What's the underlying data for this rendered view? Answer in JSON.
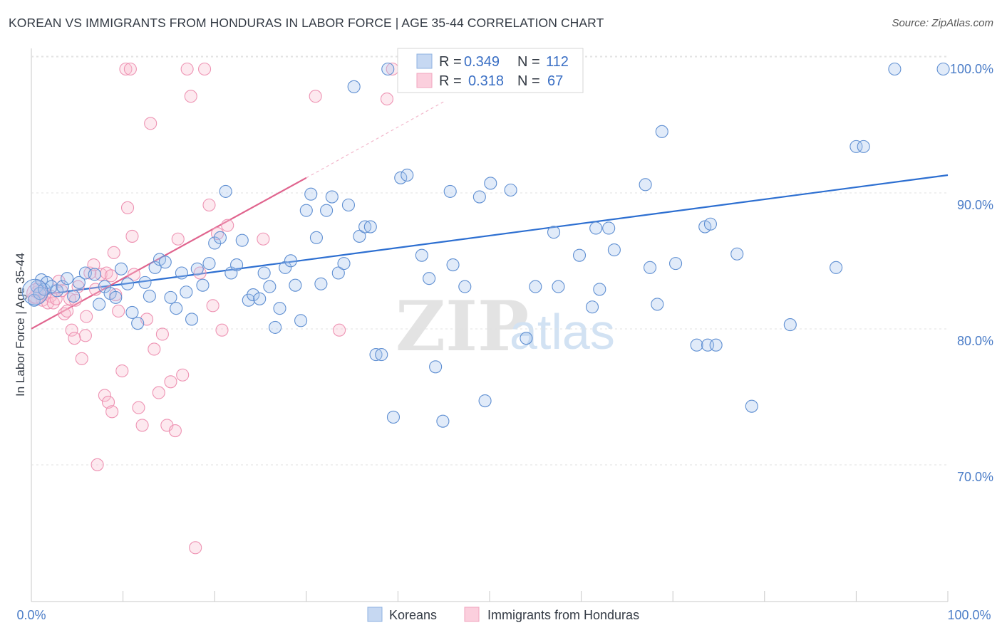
{
  "title": "KOREAN VS IMMIGRANTS FROM HONDURAS IN LABOR FORCE | AGE 35-44 CORRELATION CHART",
  "source": "Source: ZipAtlas.com",
  "watermark": {
    "zip": "ZIP",
    "atlas": "atlas"
  },
  "colors": {
    "blue": "#6f9fdc",
    "blue_line": "#2d6fd1",
    "pink": "#f29cb8",
    "pink_line": "#e0648e"
  },
  "legend": {
    "r_label": "R =",
    "n_label": "N =",
    "blue": {
      "r": "0.349",
      "n": "112"
    },
    "pink": {
      "r": "0.318",
      "n": "67"
    }
  },
  "chart_data": {
    "type": "scatter",
    "title": "KOREAN VS IMMIGRANTS FROM HONDURAS IN LABOR FORCE | AGE 35-44 CORRELATION CHART",
    "xlabel": "",
    "ylabel": "In Labor Force | Age 35-44",
    "xlim": [
      0,
      100
    ],
    "ylim": [
      60,
      102
    ],
    "x_tick_labels": [
      "0.0%",
      "100.0%"
    ],
    "y_ticks": [
      {
        "value": 70,
        "label": "70.0%"
      },
      {
        "value": 80,
        "label": "80.0%"
      },
      {
        "value": 90,
        "label": "90.0%"
      },
      {
        "value": 100,
        "label": "100.0%"
      }
    ],
    "series": [
      {
        "name": "Koreans",
        "color": "#6f9fdc",
        "trend": {
          "x": [
            0,
            100
          ],
          "y": [
            83.3,
            92.2
          ]
        },
        "points": [
          [
            0.3,
            83.0
          ],
          [
            0.6,
            84.0
          ],
          [
            0.9,
            83.5
          ],
          [
            1.1,
            84.5
          ],
          [
            1.4,
            83.8
          ],
          [
            1.7,
            84.3
          ],
          [
            2.2,
            84.0
          ],
          [
            2.8,
            83.7
          ],
          [
            3.4,
            84.0
          ],
          [
            3.9,
            84.6
          ],
          [
            4.6,
            83.3
          ],
          [
            5.2,
            84.3
          ],
          [
            5.9,
            85.0
          ],
          [
            6.9,
            84.9
          ],
          [
            7.4,
            82.7
          ],
          [
            8.0,
            84.0
          ],
          [
            8.6,
            83.5
          ],
          [
            9.2,
            83.2
          ],
          [
            9.8,
            85.3
          ],
          [
            10.5,
            84.2
          ],
          [
            11.0,
            82.1
          ],
          [
            11.6,
            81.3
          ],
          [
            12.4,
            84.3
          ],
          [
            12.9,
            83.3
          ],
          [
            13.5,
            85.4
          ],
          [
            14.0,
            86.0
          ],
          [
            14.6,
            85.8
          ],
          [
            15.2,
            83.2
          ],
          [
            15.8,
            82.4
          ],
          [
            16.4,
            85.0
          ],
          [
            16.9,
            83.6
          ],
          [
            17.5,
            81.6
          ],
          [
            18.1,
            85.3
          ],
          [
            18.7,
            84.1
          ],
          [
            19.4,
            85.7
          ],
          [
            20.0,
            87.2
          ],
          [
            20.6,
            87.6
          ],
          [
            21.2,
            91.0
          ],
          [
            21.8,
            85.0
          ],
          [
            22.4,
            85.6
          ],
          [
            23.0,
            87.4
          ],
          [
            23.7,
            83.0
          ],
          [
            24.2,
            83.4
          ],
          [
            24.9,
            83.1
          ],
          [
            25.4,
            85.0
          ],
          [
            26.0,
            84.0
          ],
          [
            26.6,
            81.0
          ],
          [
            27.1,
            82.4
          ],
          [
            27.7,
            85.4
          ],
          [
            28.3,
            85.9
          ],
          [
            28.8,
            84.1
          ],
          [
            29.4,
            81.5
          ],
          [
            30.0,
            89.6
          ],
          [
            30.5,
            90.8
          ],
          [
            31.1,
            87.6
          ],
          [
            31.6,
            84.2
          ],
          [
            32.2,
            89.6
          ],
          [
            32.8,
            90.6
          ],
          [
            33.5,
            85.0
          ],
          [
            34.1,
            85.7
          ],
          [
            34.6,
            90.0
          ],
          [
            35.2,
            98.7
          ],
          [
            35.8,
            87.7
          ],
          [
            36.4,
            88.4
          ],
          [
            37.0,
            88.4
          ],
          [
            37.6,
            79.0
          ],
          [
            38.2,
            79.0
          ],
          [
            38.9,
            100.0
          ],
          [
            39.5,
            74.4
          ],
          [
            40.3,
            92.0
          ],
          [
            41.0,
            92.2
          ],
          [
            42.6,
            86.3
          ],
          [
            43.4,
            84.6
          ],
          [
            44.1,
            78.1
          ],
          [
            44.9,
            74.1
          ],
          [
            45.7,
            91.0
          ],
          [
            46.0,
            85.6
          ],
          [
            47.3,
            84.0
          ],
          [
            48.9,
            90.6
          ],
          [
            49.5,
            75.6
          ],
          [
            50.1,
            91.6
          ],
          [
            52.3,
            91.1
          ],
          [
            54.0,
            80.2
          ],
          [
            55.0,
            84.0
          ],
          [
            57.0,
            88.0
          ],
          [
            57.5,
            84.0
          ],
          [
            59.8,
            86.3
          ],
          [
            61.2,
            82.5
          ],
          [
            61.6,
            88.3
          ],
          [
            62.0,
            83.8
          ],
          [
            63.0,
            88.3
          ],
          [
            63.6,
            86.7
          ],
          [
            67.0,
            91.5
          ],
          [
            67.5,
            85.4
          ],
          [
            68.3,
            82.7
          ],
          [
            68.8,
            95.4
          ],
          [
            70.3,
            85.7
          ],
          [
            72.6,
            79.7
          ],
          [
            73.5,
            88.4
          ],
          [
            74.1,
            88.6
          ],
          [
            73.8,
            79.7
          ],
          [
            74.7,
            79.7
          ],
          [
            77.0,
            86.4
          ],
          [
            78.6,
            75.2
          ],
          [
            82.8,
            81.2
          ],
          [
            87.8,
            85.4
          ],
          [
            90.0,
            94.3
          ],
          [
            90.8,
            94.3
          ],
          [
            94.2,
            100.0
          ],
          [
            99.5,
            100.0
          ]
        ]
      },
      {
        "name": "Immigrants from Honduras",
        "color": "#f29cb8",
        "trend": {
          "x": [
            0,
            30
          ],
          "y": [
            80.9,
            92.0
          ]
        },
        "trend_extension": {
          "x": [
            30,
            45
          ],
          "y": [
            92.0,
            97.6
          ]
        },
        "points": [
          [
            0.3,
            83.2
          ],
          [
            0.6,
            83.6
          ],
          [
            0.9,
            84.0
          ],
          [
            1.2,
            83.0
          ],
          [
            1.5,
            83.5
          ],
          [
            1.8,
            82.8
          ],
          [
            2.1,
            83.3
          ],
          [
            2.4,
            82.8
          ],
          [
            2.7,
            83.1
          ],
          [
            3.0,
            84.4
          ],
          [
            3.3,
            83.7
          ],
          [
            3.6,
            82.0
          ],
          [
            3.9,
            82.2
          ],
          [
            4.2,
            83.1
          ],
          [
            4.4,
            80.8
          ],
          [
            4.8,
            83.0
          ],
          [
            5.1,
            84.0
          ],
          [
            5.5,
            78.7
          ],
          [
            5.9,
            80.4
          ],
          [
            6.4,
            85.0
          ],
          [
            6.8,
            85.6
          ],
          [
            7.2,
            70.9
          ],
          [
            7.6,
            84.9
          ],
          [
            8.0,
            76.0
          ],
          [
            8.4,
            75.5
          ],
          [
            8.8,
            74.8
          ],
          [
            9.2,
            83.4
          ],
          [
            9.5,
            82.2
          ],
          [
            9.9,
            77.8
          ],
          [
            10.3,
            100.0
          ],
          [
            10.8,
            100.0
          ],
          [
            11.2,
            84.9
          ],
          [
            11.7,
            75.1
          ],
          [
            12.1,
            73.8
          ],
          [
            12.6,
            81.6
          ],
          [
            13.0,
            96.0
          ],
          [
            13.4,
            79.4
          ],
          [
            13.9,
            76.2
          ],
          [
            14.3,
            80.5
          ],
          [
            14.8,
            73.8
          ],
          [
            15.2,
            77.0
          ],
          [
            15.7,
            73.4
          ],
          [
            16.0,
            87.5
          ],
          [
            16.5,
            77.5
          ],
          [
            17.0,
            100.0
          ],
          [
            17.4,
            98.0
          ],
          [
            17.9,
            64.8
          ],
          [
            18.4,
            85.0
          ],
          [
            18.9,
            100.0
          ],
          [
            19.4,
            90.0
          ],
          [
            19.8,
            82.6
          ],
          [
            20.3,
            87.9
          ],
          [
            20.8,
            80.8
          ],
          [
            21.4,
            88.5
          ],
          [
            25.3,
            87.5
          ],
          [
            31.0,
            98.0
          ],
          [
            33.6,
            80.8
          ],
          [
            38.8,
            97.8
          ],
          [
            39.4,
            100.0
          ],
          [
            8.2,
            85.0
          ],
          [
            6.0,
            81.8
          ],
          [
            7.0,
            83.8
          ],
          [
            4.7,
            80.2
          ],
          [
            10.5,
            89.8
          ],
          [
            11.0,
            87.7
          ],
          [
            9.0,
            86.5
          ],
          [
            8.7,
            84.8
          ]
        ]
      }
    ]
  },
  "bottom_legend": {
    "blue_label": "Koreans",
    "pink_label": "Immigrants from Honduras"
  }
}
